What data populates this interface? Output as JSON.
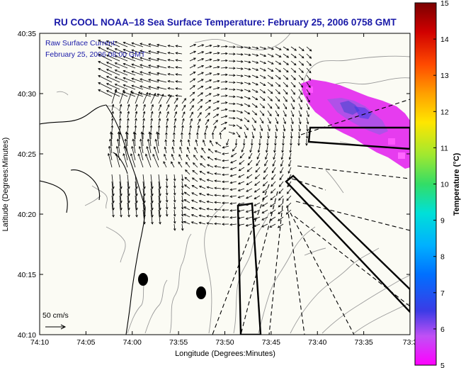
{
  "title": "RU COOL  NOAA–18  Sea Surface Temperature:  February 25, 2006 0758 GMT",
  "annotation": {
    "line1": "Raw Surface Current:",
    "line2": "February 25, 2006 08:00 GMT"
  },
  "scale_label": "50 cm/s",
  "x_axis": {
    "label": "Longitude (Degrees:Minutes)",
    "ticks": [
      "74:10",
      "74:05",
      "74:00",
      "73:55",
      "73:50",
      "73:45",
      "73:40",
      "73:35",
      "73:3"
    ]
  },
  "y_axis": {
    "label": "Latitude (Degrees:Minutes)",
    "ticks": [
      "40:35",
      "40:30",
      "40:25",
      "40:20",
      "40:15",
      "40:10"
    ]
  },
  "colorbar": {
    "label": "Temperature (°C)",
    "ticks": [
      "15",
      "14",
      "13",
      "12",
      "11",
      "10",
      "9",
      "8",
      "7",
      "6",
      "5"
    ],
    "min": 5,
    "max": 15,
    "colors": [
      "#ff00ff",
      "#3b3be6",
      "#0099ff",
      "#00e0e0",
      "#33dd66",
      "#c8e81a",
      "#ffe600",
      "#ff9900",
      "#ff2a00",
      "#c40000",
      "#7a0000"
    ]
  },
  "warm_patch_color": "#e63cef",
  "land_color": "#fbfbf4"
}
